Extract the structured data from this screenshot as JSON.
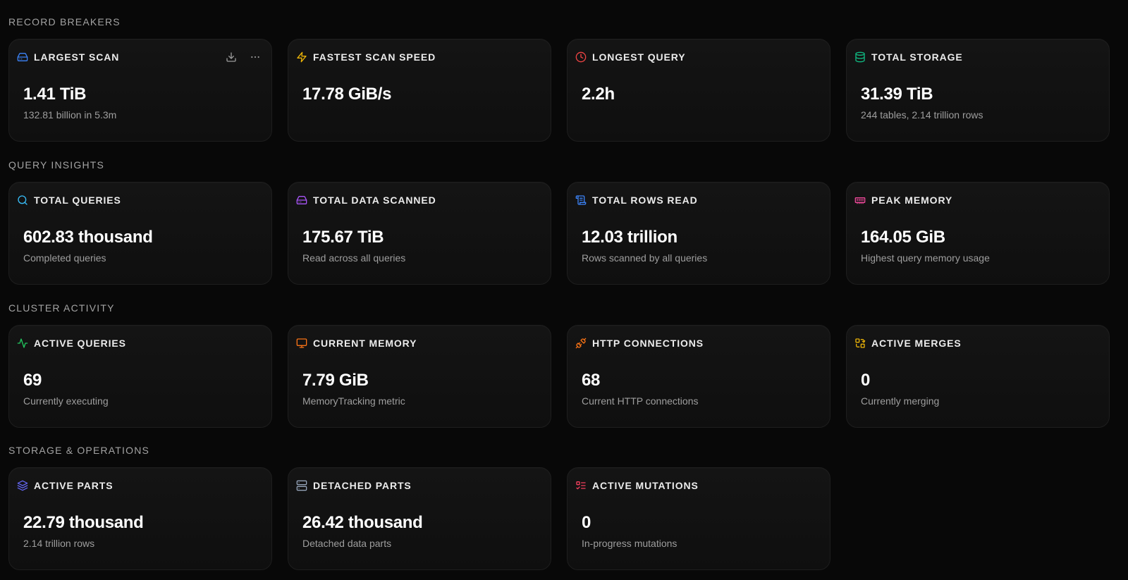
{
  "sections": {
    "record_breakers": "RECORD BREAKERS",
    "query_insights": "QUERY INSIGHTS",
    "cluster_activity": "CLUSTER ACTIVITY",
    "storage_operations": "STORAGE & OPERATIONS"
  },
  "cards": {
    "largest_scan": {
      "label": "LARGEST SCAN",
      "value": "1.41 TiB",
      "sub": "132.81 billion in 5.3m",
      "icon": "hard-drive-icon",
      "color": "#3b82f6"
    },
    "fastest_scan_speed": {
      "label": "FASTEST SCAN SPEED",
      "value": "17.78 GiB/s",
      "sub": "",
      "icon": "zap-icon",
      "color": "#eab308"
    },
    "longest_query": {
      "label": "LONGEST QUERY",
      "value": "2.2h",
      "sub": "",
      "icon": "clock-icon",
      "color": "#ef4444"
    },
    "total_storage": {
      "label": "TOTAL STORAGE",
      "value": "31.39 TiB",
      "sub": "244 tables, 2.14 trillion rows",
      "icon": "database-icon",
      "color": "#10b981"
    },
    "total_queries": {
      "label": "TOTAL QUERIES",
      "value": "602.83 thousand",
      "sub": "Completed queries",
      "icon": "search-icon",
      "color": "#38bdf8"
    },
    "total_data_scanned": {
      "label": "TOTAL DATA SCANNED",
      "value": "175.67 TiB",
      "sub": "Read across all queries",
      "icon": "hard-drive-icon",
      "color": "#a855f7"
    },
    "total_rows_read": {
      "label": "TOTAL ROWS READ",
      "value": "12.03 trillion",
      "sub": "Rows scanned by all queries",
      "icon": "scroll-icon",
      "color": "#3b82f6"
    },
    "peak_memory": {
      "label": "PEAK MEMORY",
      "value": "164.05 GiB",
      "sub": "Highest query memory usage",
      "icon": "memory-stick-icon",
      "color": "#ec4899"
    },
    "active_queries": {
      "label": "ACTIVE QUERIES",
      "value": "69",
      "sub": "Currently executing",
      "icon": "activity-icon",
      "color": "#22c55e"
    },
    "current_memory": {
      "label": "CURRENT MEMORY",
      "value": "7.79 GiB",
      "sub": "MemoryTracking metric",
      "icon": "monitor-icon",
      "color": "#f97316"
    },
    "http_connections": {
      "label": "HTTP CONNECTIONS",
      "value": "68",
      "sub": "Current HTTP connections",
      "icon": "plug-icon",
      "color": "#f97316"
    },
    "active_merges": {
      "label": "ACTIVE MERGES",
      "value": "0",
      "sub": "Currently merging",
      "icon": "merge-icon",
      "color": "#eab308"
    },
    "active_parts": {
      "label": "ACTIVE PARTS",
      "value": "22.79 thousand",
      "sub": "2.14 trillion rows",
      "icon": "layers-icon",
      "color": "#6366f1"
    },
    "detached_parts": {
      "label": "DETACHED PARTS",
      "value": "26.42 thousand",
      "sub": "Detached data parts",
      "icon": "server-icon",
      "color": "#94a3b8"
    },
    "active_mutations": {
      "label": "ACTIVE MUTATIONS",
      "value": "0",
      "sub": "In-progress mutations",
      "icon": "list-checks-icon",
      "color": "#f43f5e"
    }
  },
  "actions": {
    "download": "download-icon",
    "more": "more-horizontal-icon"
  }
}
